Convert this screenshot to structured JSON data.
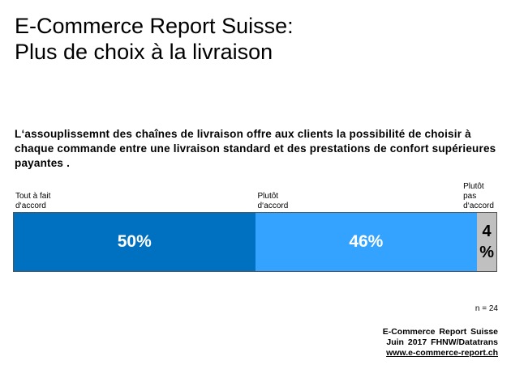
{
  "title_line1": "E-Commerce Report Suisse:",
  "title_line2": "Plus de choix à la livraison",
  "question": "L‘assouplissemnt des chaînes de livraison offre aux clients la possibilité de choisir à chaque commande entre une livraison standard et des prestations de confort supérieures payantes .",
  "chart_data": {
    "type": "bar",
    "orientation": "horizontal-stacked",
    "categories": [
      "Tout à fait d‘accord",
      "Plutôt d‘accord",
      "Plutôt pas d‘accord"
    ],
    "values": [
      50,
      46,
      4
    ],
    "data_labels": [
      "50%",
      "46%",
      "4 %"
    ],
    "colors": [
      "#0070c0",
      "#33a3ff",
      "#c0c0c0"
    ],
    "unit": "%"
  },
  "label_lines": [
    [
      "Tout à fait",
      "d‘accord"
    ],
    [
      "Plutôt",
      "d‘accord"
    ],
    [
      "Plutôt",
      "pas",
      "d‘accord"
    ]
  ],
  "small_label_lines": [
    "4",
    "%"
  ],
  "n_label": "n = 24",
  "source": {
    "line1": "E-Commerce Report Suisse",
    "line2": "Juin 2017 FHNW/Datatrans",
    "url": "www.e-commerce-report.ch"
  }
}
